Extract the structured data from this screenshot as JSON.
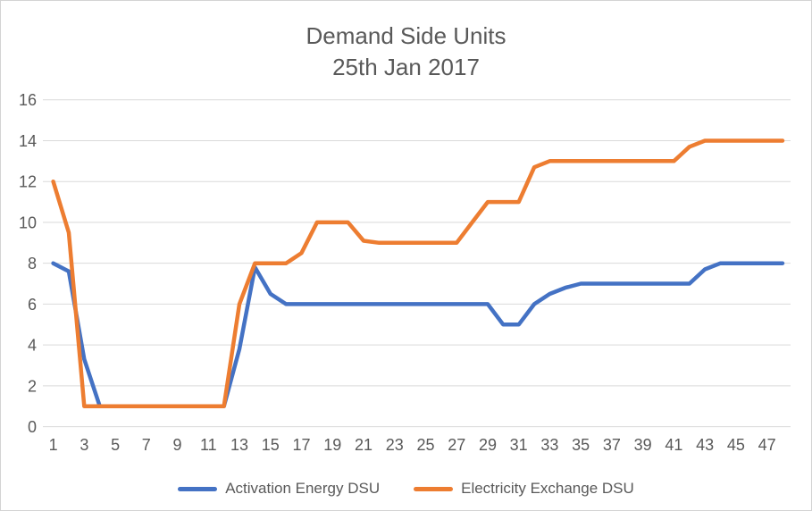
{
  "title": {
    "line1": "Demand Side Units",
    "line2": "25th Jan 2017"
  },
  "colors": {
    "activation_energy_dsu": "#4472C4",
    "electricity_exchange_dsu": "#ED7D31",
    "text": "#595959",
    "gridline": "#D9D9D9",
    "border": "#D3D3D3",
    "background": "#FFFFFF"
  },
  "legend": {
    "items": [
      {
        "label": "Activation Energy DSU",
        "color": "#4472C4"
      },
      {
        "label": "Electricity Exchange DSU",
        "color": "#ED7D31"
      }
    ]
  },
  "chart_data": {
    "type": "line",
    "title": "Demand Side Units",
    "subtitle": "25th Jan 2017",
    "xlabel": "",
    "ylabel": "",
    "xlim": [
      1,
      48
    ],
    "ylim": [
      0,
      16
    ],
    "grid": "horizontal",
    "legend_position": "bottom",
    "x": [
      1,
      2,
      3,
      4,
      5,
      6,
      7,
      8,
      9,
      10,
      11,
      12,
      13,
      14,
      15,
      16,
      17,
      18,
      19,
      20,
      21,
      22,
      23,
      24,
      25,
      26,
      27,
      28,
      29,
      30,
      31,
      32,
      33,
      34,
      35,
      36,
      37,
      38,
      39,
      40,
      41,
      42,
      43,
      44,
      45,
      46,
      47,
      48
    ],
    "x_tick_labels": [
      1,
      3,
      5,
      7,
      9,
      11,
      13,
      15,
      17,
      19,
      21,
      23,
      25,
      27,
      29,
      31,
      33,
      35,
      37,
      39,
      41,
      43,
      45,
      47
    ],
    "y_ticks": [
      0,
      2,
      4,
      6,
      8,
      10,
      12,
      14,
      16
    ],
    "series": [
      {
        "name": "Activation Energy DSU",
        "color": "#4472C4",
        "values": [
          8,
          7.6,
          3.3,
          1,
          1,
          1,
          1,
          1,
          1,
          1,
          1,
          1,
          3.8,
          7.8,
          6.5,
          6,
          6,
          6,
          6,
          6,
          6,
          6,
          6,
          6,
          6,
          6,
          6,
          6,
          6,
          5,
          5,
          6,
          6.5,
          6.8,
          7,
          7,
          7,
          7,
          7,
          7,
          7,
          7,
          7.7,
          8,
          8,
          8,
          8,
          8
        ]
      },
      {
        "name": "Electricity Exchange DSU",
        "color": "#ED7D31",
        "values": [
          12,
          9.5,
          1,
          1,
          1,
          1,
          1,
          1,
          1,
          1,
          1,
          1,
          6,
          8,
          8,
          8,
          8.5,
          10,
          10,
          10,
          9.1,
          9,
          9,
          9,
          9,
          9,
          9,
          10,
          11,
          11,
          11,
          12.7,
          13,
          13,
          13,
          13,
          13,
          13,
          13,
          13,
          13,
          13.7,
          14,
          14,
          14,
          14,
          14,
          14
        ]
      }
    ]
  }
}
